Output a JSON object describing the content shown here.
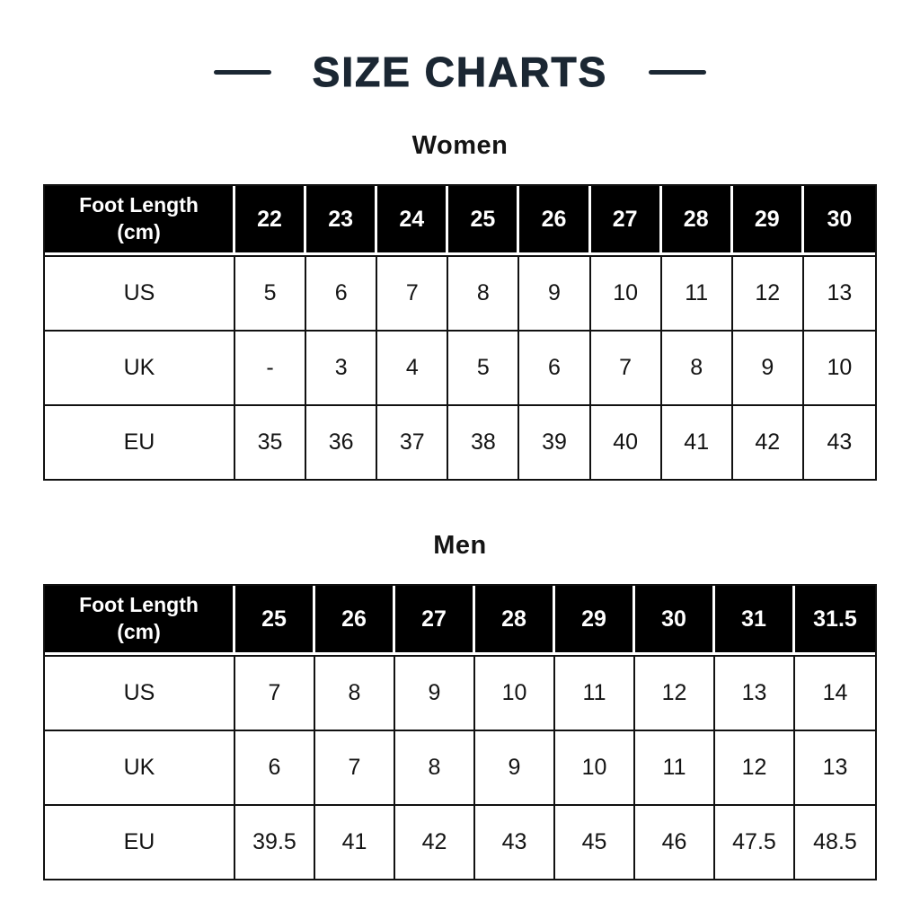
{
  "header": {
    "title": "SIZE CHARTS"
  },
  "colors": {
    "title": "#1b2733",
    "header_cell_bg": "#000000",
    "header_cell_text": "#ffffff",
    "grid_border": "#111111",
    "body_text": "#141414",
    "background": "#ffffff"
  },
  "chart_data": [
    {
      "type": "table",
      "title": "Women",
      "corner_header_lines": [
        "Foot Length",
        "(cm)"
      ],
      "columns": [
        "22",
        "23",
        "24",
        "25",
        "26",
        "27",
        "28",
        "29",
        "30"
      ],
      "rows": [
        {
          "label": "US",
          "values": [
            "5",
            "6",
            "7",
            "8",
            "9",
            "10",
            "11",
            "12",
            "13"
          ]
        },
        {
          "label": "UK",
          "values": [
            "-",
            "3",
            "4",
            "5",
            "6",
            "7",
            "8",
            "9",
            "10"
          ]
        },
        {
          "label": "EU",
          "values": [
            "35",
            "36",
            "37",
            "38",
            "39",
            "40",
            "41",
            "42",
            "43"
          ]
        }
      ]
    },
    {
      "type": "table",
      "title": "Men",
      "corner_header_lines": [
        "Foot Length",
        "(cm)"
      ],
      "columns": [
        "25",
        "26",
        "27",
        "28",
        "29",
        "30",
        "31",
        "31.5"
      ],
      "rows": [
        {
          "label": "US",
          "values": [
            "7",
            "8",
            "9",
            "10",
            "11",
            "12",
            "13",
            "14"
          ]
        },
        {
          "label": "UK",
          "values": [
            "6",
            "7",
            "8",
            "9",
            "10",
            "11",
            "12",
            "13"
          ]
        },
        {
          "label": "EU",
          "values": [
            "39.5",
            "41",
            "42",
            "43",
            "45",
            "46",
            "47.5",
            "48.5"
          ]
        }
      ]
    }
  ]
}
